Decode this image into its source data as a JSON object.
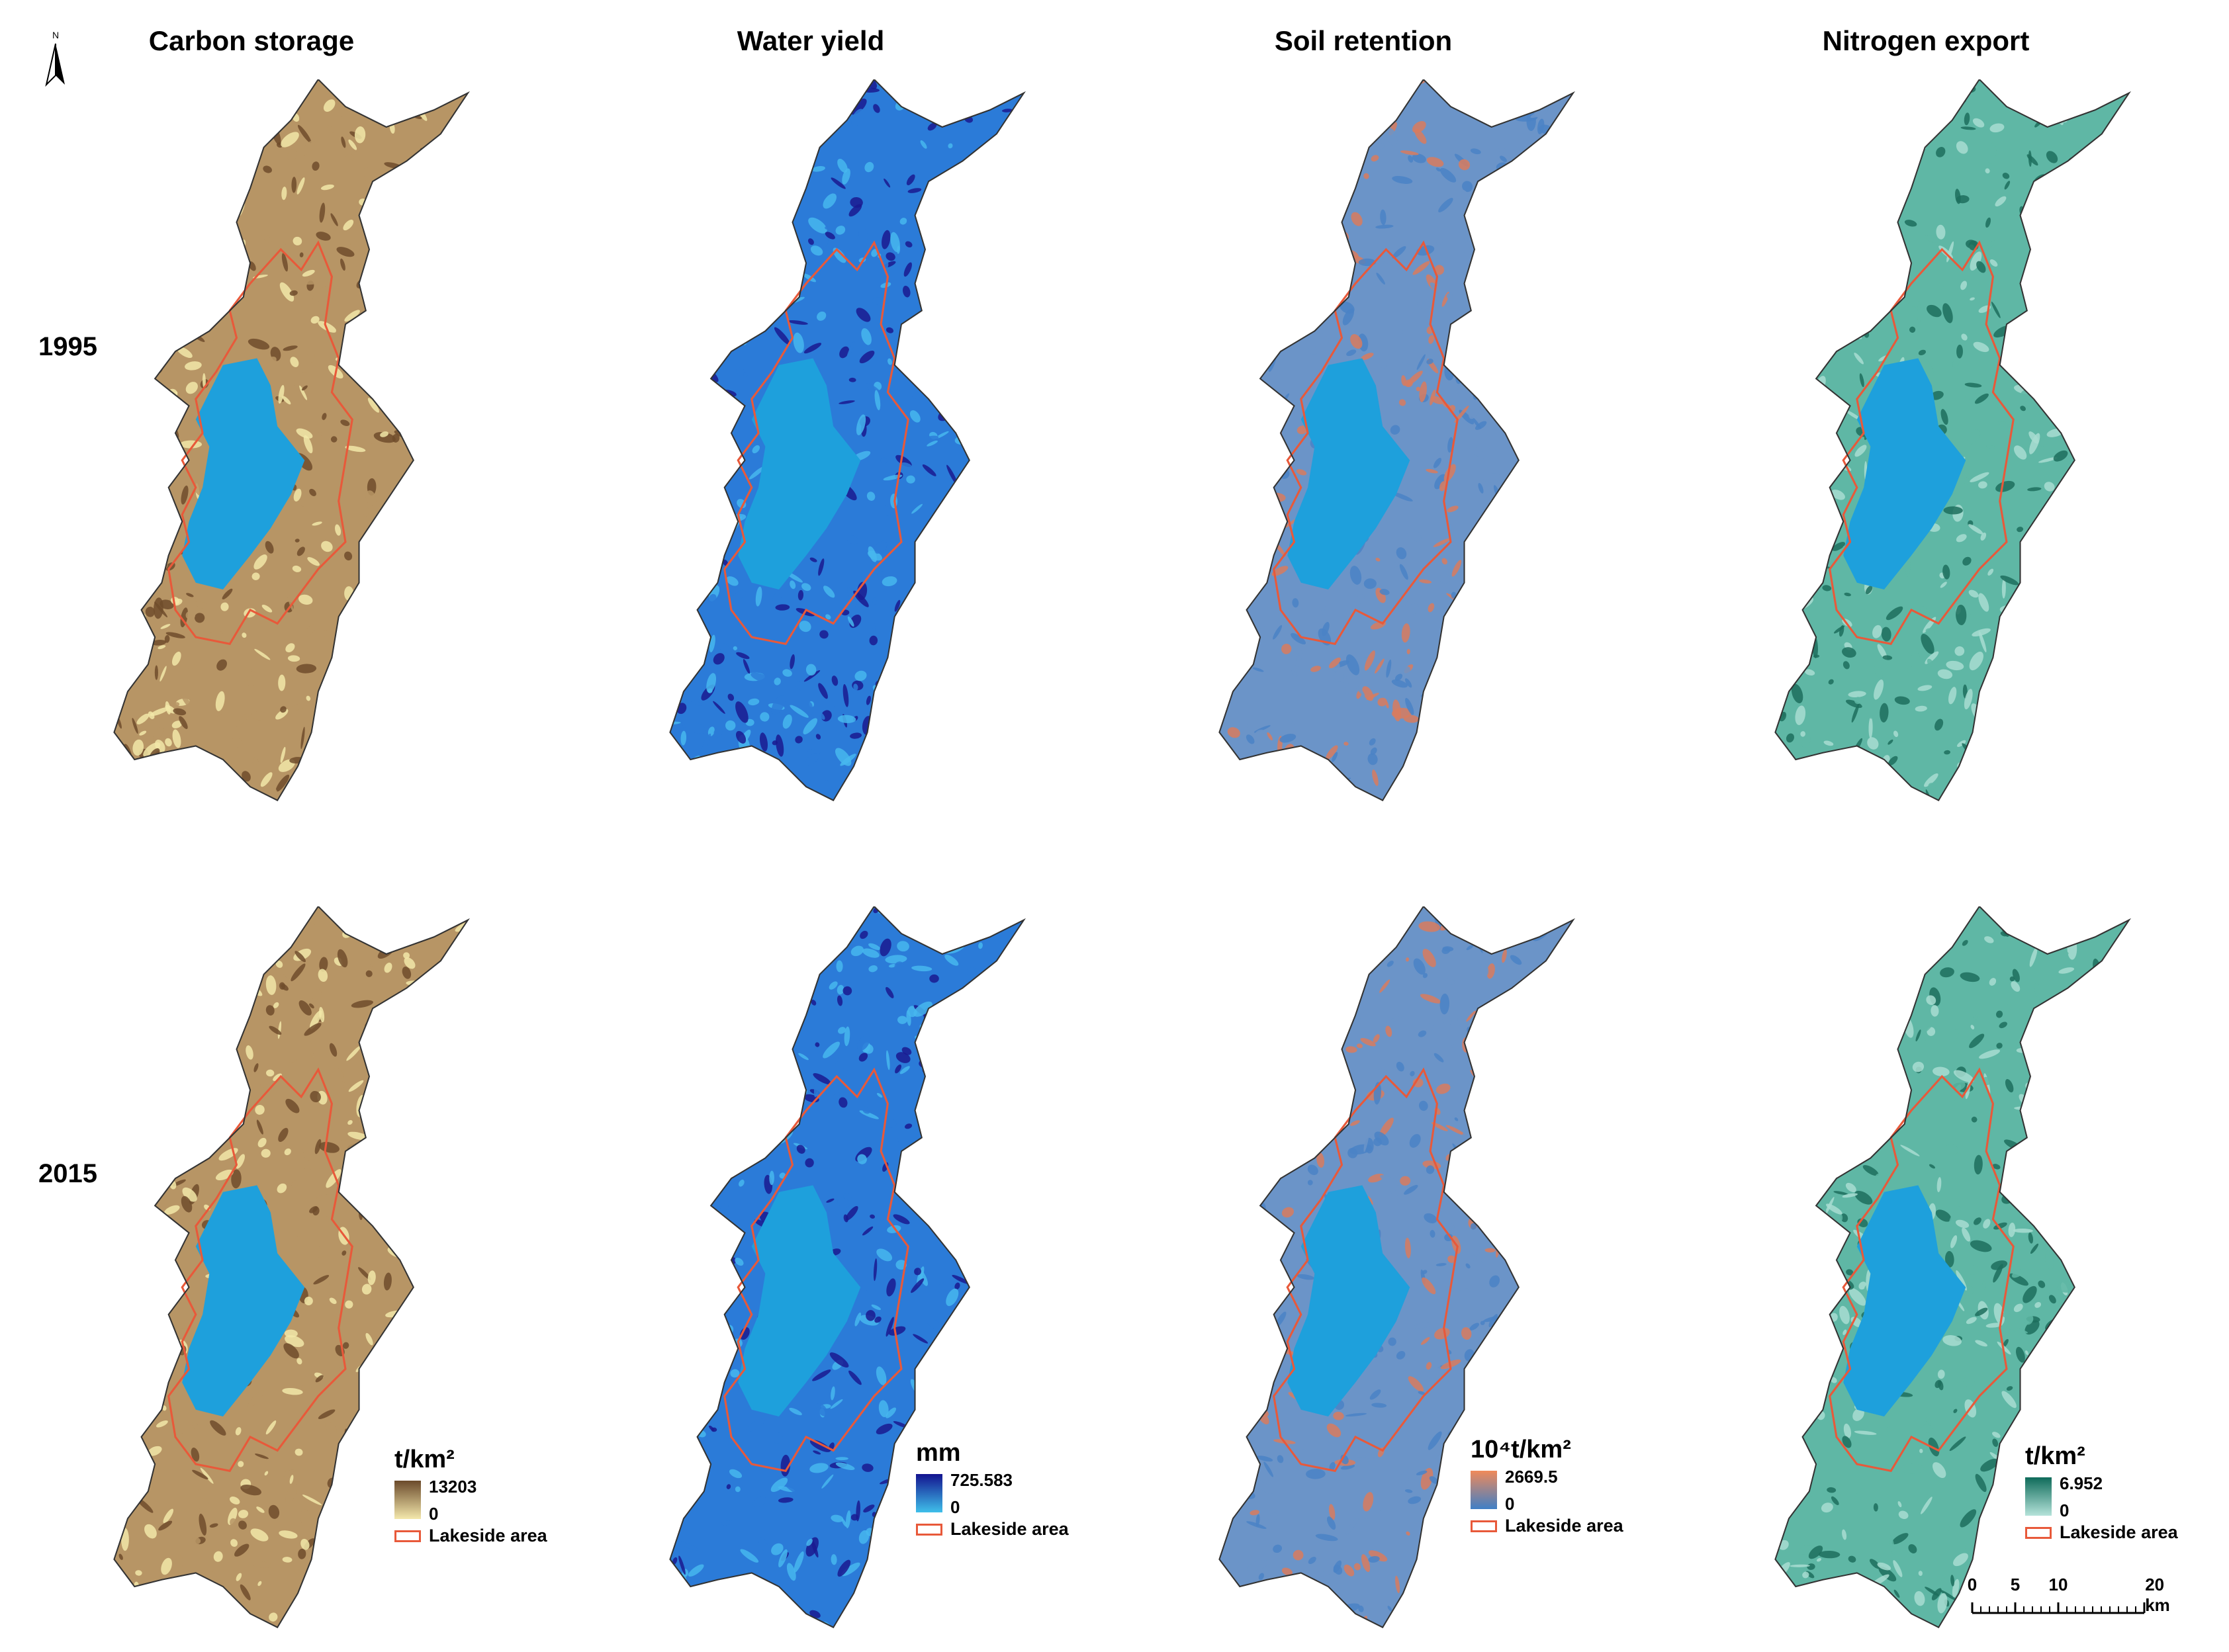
{
  "columns": [
    {
      "title": "Carbon storage",
      "ramp": [
        "#6b4a2b",
        "#f4e8ac"
      ],
      "legend": {
        "unit": "t/km²",
        "max": "13203",
        "min": "0",
        "lake": "Lakeside area"
      },
      "colors": {
        "low": "#f2e7a8",
        "mid": "#b79565",
        "high": "#704c2c"
      }
    },
    {
      "title": "Water yield",
      "ramp": [
        "#13138f",
        "#3fc0ea"
      ],
      "legend": {
        "unit": "mm",
        "max": "725.583",
        "min": "0",
        "lake": "Lakeside area"
      },
      "colors": {
        "low": "#47b7ee",
        "mid": "#2b7bd8",
        "high": "#1a1a90"
      }
    },
    {
      "title": "Soil retention",
      "ramp": [
        "#f08a5a",
        "#3f7fc6"
      ],
      "legend": {
        "unit": "10⁴t/km²",
        "max": "2669.5",
        "min": "0",
        "lake": "Lakeside area"
      },
      "colors": {
        "low": "#4a82c6",
        "mid": "#6b94c8",
        "high": "#d87b5e"
      }
    },
    {
      "title": "Nitrogen export",
      "ramp": [
        "#0f6b5a",
        "#b5e3da"
      ],
      "legend": {
        "unit": "t/km²",
        "max": "6.952",
        "min": "0",
        "lake": "Lakeside area"
      },
      "colors": {
        "low": "#a8ddd1",
        "mid": "#5fb7a5",
        "high": "#1d6e5d"
      }
    }
  ],
  "rows": [
    {
      "year": "1995"
    },
    {
      "year": "2015"
    }
  ],
  "north_label": "N",
  "lake_color": "#1ea0dc",
  "lakeside_outline_color": "#e8593a",
  "scalebar": {
    "ticks": [
      "0",
      "5",
      "10",
      "20 km"
    ],
    "values_km": [
      0,
      5,
      10,
      20
    ]
  }
}
